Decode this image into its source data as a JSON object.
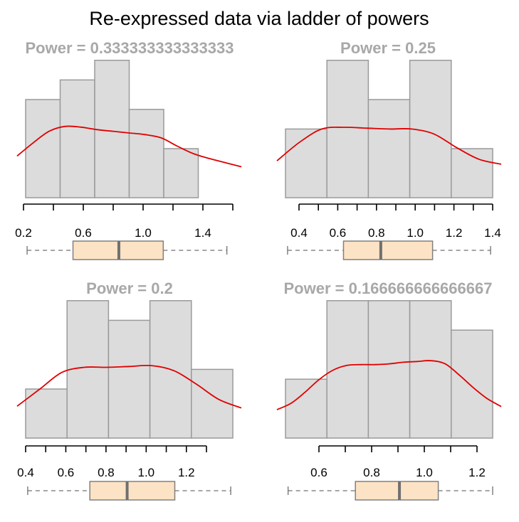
{
  "title": "Re-expressed data via ladder of powers",
  "colors": {
    "bar_fill": "#dcdcdc",
    "bar_stroke": "#9a9a9a",
    "density": "#e00000",
    "box_fill": "#fde3c5",
    "box_stroke": "#808080",
    "median": "#707070",
    "whisker": "#707070",
    "axis": "#000000",
    "panel_title": "#a8a8a8"
  },
  "chart_data": [
    {
      "type": "histogram",
      "title": "Power =  0.333333333333333",
      "bins": [
        0.2,
        0.4,
        0.6,
        0.8,
        1.0,
        1.2,
        1.4
      ],
      "counts": [
        5,
        6,
        7,
        4.5,
        2.5,
        0
      ],
      "hist_xlim": [
        0.2,
        1.6
      ],
      "axis_range": [
        0.2,
        1.6
      ],
      "ticks": [
        0.2,
        0.4,
        0.6,
        0.8,
        1.0,
        1.2,
        1.4,
        1.6
      ],
      "tick_labels": [
        "0.2",
        "0.6",
        "1.0",
        "1.4"
      ],
      "tick_label_values": [
        0.2,
        0.6,
        1.0,
        1.4
      ],
      "density": {
        "x": [
          0.2,
          0.3,
          0.4,
          0.5,
          0.6,
          0.7,
          0.8,
          0.9,
          1.0,
          1.1,
          1.2,
          1.3,
          1.4,
          1.5,
          1.6
        ],
        "y": [
          2.6,
          4.2,
          5.6,
          6.2,
          6.1,
          5.8,
          5.6,
          5.4,
          5.2,
          4.8,
          3.8,
          2.9,
          2.3,
          1.8,
          1.3
        ]
      },
      "boxplot": {
        "min": 0.21,
        "q1": 0.52,
        "median": 0.83,
        "q3": 1.13,
        "max": 1.56
      }
    },
    {
      "type": "histogram",
      "title": "Power =  0.25",
      "bins": [
        0.4,
        0.6,
        0.8,
        1.0,
        1.2,
        1.4
      ],
      "counts": [
        3.5,
        7,
        5,
        7,
        2.5
      ],
      "hist_xlim": [
        0.4,
        1.4
      ],
      "axis_range": [
        0.4,
        1.4
      ],
      "ticks": [
        0.4,
        0.5,
        0.6,
        0.7,
        0.8,
        0.9,
        1.0,
        1.1,
        1.2,
        1.3,
        1.4
      ],
      "tick_labels": [
        "0.4",
        "0.6",
        "0.8",
        "1.0",
        "1.2",
        "1.4"
      ],
      "tick_label_values": [
        0.4,
        0.6,
        0.8,
        1.0,
        1.2,
        1.4
      ],
      "density": {
        "x": [
          0.4,
          0.5,
          0.6,
          0.7,
          0.8,
          0.9,
          1.0,
          1.1,
          1.2,
          1.3,
          1.4
        ],
        "y": [
          2.0,
          4.2,
          5.8,
          6.0,
          5.9,
          5.8,
          5.8,
          5.2,
          3.6,
          2.2,
          1.6
        ]
      },
      "boxplot": {
        "min": 0.41,
        "q1": 0.68,
        "median": 0.86,
        "q3": 1.11,
        "max": 1.39
      }
    },
    {
      "type": "histogram",
      "title": "Power =  0.2",
      "bins": [
        0.4,
        0.6,
        0.8,
        1.0,
        1.2,
        1.4
      ],
      "counts": [
        2.5,
        7,
        6,
        7,
        3.5
      ],
      "hist_xlim": [
        0.4,
        1.4
      ],
      "axis_range": [
        0.4,
        1.3
      ],
      "ticks": [
        0.4,
        0.5,
        0.6,
        0.7,
        0.8,
        0.9,
        1.0,
        1.1,
        1.2,
        1.3
      ],
      "tick_labels": [
        "0.4",
        "0.6",
        "0.8",
        "1.0",
        "1.2"
      ],
      "tick_label_values": [
        0.4,
        0.6,
        0.8,
        1.0,
        1.2
      ],
      "density": {
        "x": [
          0.4,
          0.5,
          0.6,
          0.7,
          0.8,
          0.9,
          1.0,
          1.1,
          1.2,
          1.3,
          1.4
        ],
        "y": [
          1.4,
          3.4,
          5.4,
          6.0,
          6.0,
          6.1,
          6.2,
          5.6,
          4.0,
          2.2,
          1.2
        ]
      },
      "boxplot": {
        "min": 0.41,
        "q1": 0.71,
        "median": 0.89,
        "q3": 1.12,
        "max": 1.39
      }
    },
    {
      "type": "histogram",
      "title": "Power =  0.166666666666667",
      "bins": [
        0.4,
        0.6,
        0.8,
        1.0,
        1.2,
        1.4
      ],
      "counts": [
        3.0,
        7,
        7,
        7,
        5.5
      ],
      "hist_xlim": [
        0.45,
        1.25
      ],
      "axis_range": [
        0.6,
        1.2
      ],
      "ticks": [
        0.6,
        0.7,
        0.8,
        0.9,
        1.0,
        1.1,
        1.2
      ],
      "tick_labels": [
        "0.6",
        "0.8",
        "1.0",
        "1.2"
      ],
      "tick_label_values": [
        0.6,
        0.8,
        1.0,
        1.2
      ],
      "density": {
        "x": [
          0.45,
          0.5,
          0.55,
          0.6,
          0.65,
          0.7,
          0.75,
          0.8,
          0.85,
          0.9,
          0.95,
          1.0,
          1.05,
          1.1,
          1.15,
          1.2,
          1.25
        ],
        "y": [
          1.0,
          1.8,
          3.2,
          4.8,
          6.0,
          6.6,
          6.7,
          6.7,
          6.8,
          7.0,
          7.1,
          7.2,
          6.8,
          5.4,
          3.8,
          2.4,
          1.4
        ]
      },
      "boxplot": {
        "min": 0.46,
        "q1": 0.72,
        "median": 0.89,
        "q3": 1.04,
        "max": 1.25
      }
    }
  ]
}
